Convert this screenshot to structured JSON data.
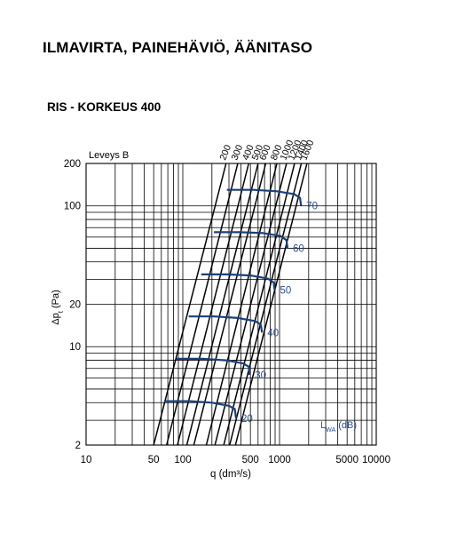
{
  "page_title": "ILMAVIRTA, PAINEHÄVIÖ, ÄÄNITASO",
  "chart_subtitle": "RIS - KORKEUS 400",
  "colors": {
    "grid": "#000000",
    "sound_curve": "#1c3f7a",
    "sound_label": "#2a4f8f"
  },
  "chart_data": {
    "type": "line",
    "title": "",
    "corner_label": "Leveys B",
    "xlabel": "q (dm³/s)",
    "ylabel": "Δpt (Pa)",
    "ylabel_main": "Δp",
    "ylabel_sub": "t",
    "ylabel_unit": " (Pa)",
    "x_scale": "log",
    "y_scale": "log",
    "xlim": [
      10,
      10000
    ],
    "ylim": [
      2,
      200
    ],
    "grid": true,
    "x_tick_labels": [
      {
        "value": 10,
        "label": "10"
      },
      {
        "value": 50,
        "label": "50"
      },
      {
        "value": 100,
        "label": "100"
      },
      {
        "value": 500,
        "label": "500"
      },
      {
        "value": 1000,
        "label": "1000"
      },
      {
        "value": 5000,
        "label": "5000"
      },
      {
        "value": 10000,
        "label": "10000"
      }
    ],
    "y_tick_labels": [
      {
        "value": 2,
        "label": "2"
      },
      {
        "value": 10,
        "label": "10"
      },
      {
        "value": 20,
        "label": "20"
      },
      {
        "value": 100,
        "label": "100"
      },
      {
        "value": 200,
        "label": "200"
      }
    ],
    "width_series": [
      {
        "name": "200",
        "x": [
          50,
          280
        ],
        "y": [
          2,
          200
        ]
      },
      {
        "name": "300",
        "x": [
          68,
          370
        ],
        "y": [
          2,
          200
        ]
      },
      {
        "name": "400",
        "x": [
          88,
          480
        ],
        "y": [
          2,
          200
        ]
      },
      {
        "name": "500",
        "x": [
          110,
          600
        ],
        "y": [
          2,
          200
        ]
      },
      {
        "name": "600",
        "x": [
          130,
          720
        ],
        "y": [
          2,
          200
        ]
      },
      {
        "name": "800",
        "x": [
          175,
          940
        ],
        "y": [
          2,
          200
        ]
      },
      {
        "name": "1000",
        "x": [
          215,
          1180
        ],
        "y": [
          2,
          200
        ]
      },
      {
        "name": "1200",
        "x": [
          265,
          1430
        ],
        "y": [
          2,
          200
        ]
      },
      {
        "name": "1400",
        "x": [
          305,
          1680
        ],
        "y": [
          2,
          200
        ]
      },
      {
        "name": "1600",
        "x": [
          350,
          1920
        ],
        "y": [
          2,
          200
        ]
      }
    ],
    "sound_level_unit": "(dB)",
    "sound_level_series": [
      {
        "name": "20",
        "x": [
          64,
          120,
          200,
          300,
          345,
          355
        ],
        "y": [
          4.1,
          4.1,
          4.0,
          3.8,
          3.6,
          3.1
        ]
      },
      {
        "name": "30",
        "x": [
          86,
          160,
          280,
          420,
          480,
          490
        ],
        "y": [
          8.2,
          8.2,
          8.0,
          7.6,
          7.2,
          6.3
        ]
      },
      {
        "name": "40",
        "x": [
          115,
          210,
          370,
          560,
          640,
          660
        ],
        "y": [
          16.4,
          16.4,
          16.0,
          15.2,
          14.3,
          12.6
        ]
      },
      {
        "name": "50",
        "x": [
          155,
          290,
          500,
          760,
          870,
          890
        ],
        "y": [
          32.6,
          32.6,
          32.0,
          30.4,
          28.6,
          25.2
        ]
      },
      {
        "name": "60",
        "x": [
          210,
          390,
          680,
          1030,
          1180,
          1210
        ],
        "y": [
          65,
          65,
          64,
          61,
          57,
          50
        ]
      },
      {
        "name": "70",
        "x": [
          285,
          540,
          940,
          1420,
          1630,
          1670
        ],
        "y": [
          130,
          130,
          127,
          121,
          114,
          100
        ]
      }
    ],
    "legend": {
      "symbol_main": "L",
      "symbol_sub": "WA",
      "unit": " (dB)",
      "position": "bottom-right"
    }
  }
}
